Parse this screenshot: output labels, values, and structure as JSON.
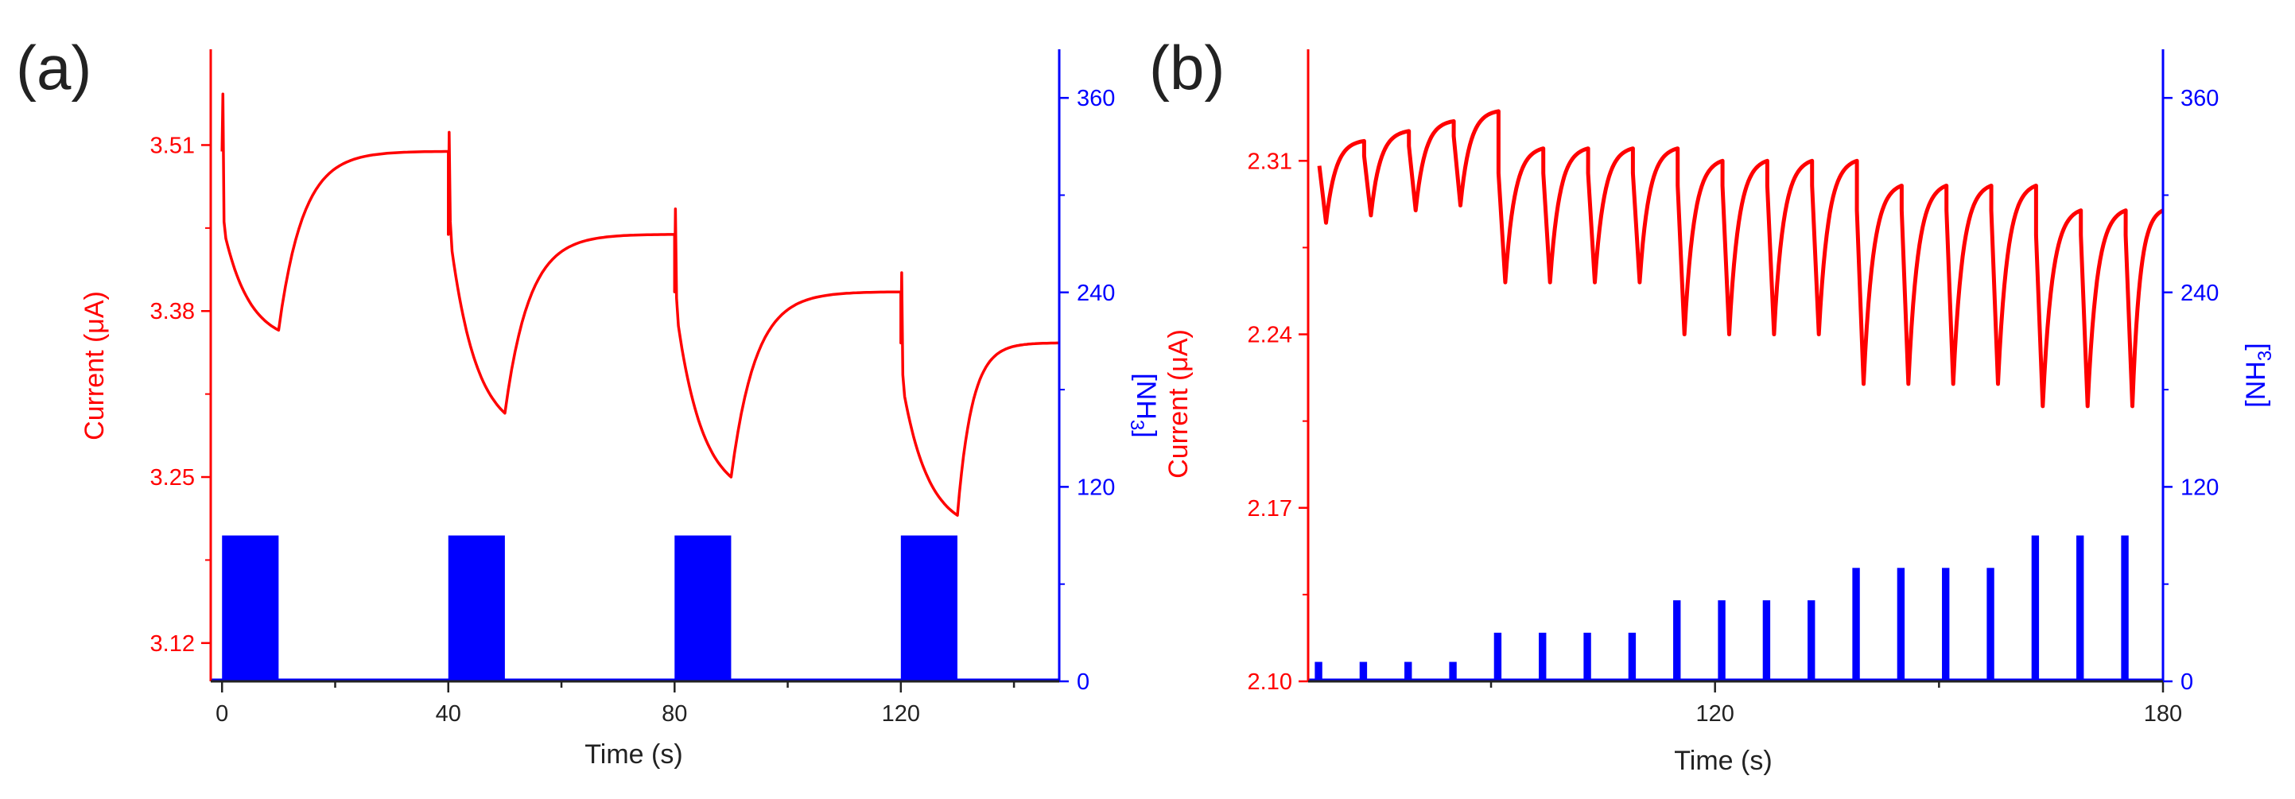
{
  "colors": {
    "current": "#ff0000",
    "nh3": "#0000ff",
    "axis": "#222222"
  },
  "chart_data": [
    {
      "panel_label": "(a)",
      "type": "line",
      "xlabel": "Time (s)",
      "ylabel_left": "Current (μA)",
      "ylabel_right": "[NH",
      "ylabel_right_sub": "3",
      "ylabel_right_close": "]",
      "xlim": [
        -2,
        148
      ],
      "ylim_left": [
        3.09,
        3.585
      ],
      "ylim_right": [
        0,
        390
      ],
      "x_ticks": [
        0,
        40,
        80,
        120
      ],
      "x_tick_labels": [
        "0",
        "40",
        "80",
        "120"
      ],
      "y_left_ticks": [
        3.12,
        3.25,
        3.38,
        3.51
      ],
      "y_left_tick_labels": [
        "3.12",
        "3.25",
        "3.38",
        "3.51"
      ],
      "y_right_ticks": [
        0,
        120,
        240,
        360
      ],
      "y_right_tick_labels": [
        "0",
        "120",
        "240",
        "360"
      ],
      "series": [
        {
          "name": "Current",
          "axis": "left",
          "color": "#ff0000",
          "cycles": [
            {
              "t_on": 0,
              "t_off": 10,
              "peak": 3.55,
              "start": 3.45,
              "fall_end": 3.365,
              "rise_end": 3.505
            },
            {
              "t_on": 40,
              "t_off": 50,
              "peak": 3.52,
              "start": 3.45,
              "fall_end": 3.3,
              "rise_end": 3.44
            },
            {
              "t_on": 80,
              "t_off": 90,
              "peak": 3.46,
              "start": 3.39,
              "fall_end": 3.25,
              "rise_end": 3.395
            },
            {
              "t_on": 120,
              "t_off": 130,
              "peak": 3.41,
              "start": 3.33,
              "fall_end": 3.22,
              "rise_end": 3.355
            }
          ]
        },
        {
          "name": "[NH3]",
          "axis": "right",
          "color": "#0000ff",
          "pulses": [
            {
              "start": 0,
              "end": 10,
              "value": 90
            },
            {
              "start": 40,
              "end": 50,
              "value": 90
            },
            {
              "start": 80,
              "end": 90,
              "value": 90
            },
            {
              "start": 120,
              "end": 130,
              "value": 90
            }
          ]
        }
      ]
    },
    {
      "panel_label": "(b)",
      "type": "line",
      "xlabel": "Time (s)",
      "ylabel_left": "Current (μA)",
      "ylabel_right": "[NH",
      "ylabel_right_sub": "3",
      "ylabel_right_close": "]",
      "xlim": [
        65.5,
        180
      ],
      "ylim_left": [
        2.1,
        2.355
      ],
      "ylim_right": [
        0,
        390
      ],
      "x_ticks": [
        120,
        180
      ],
      "x_tick_labels": [
        "120",
        "180"
      ],
      "y_left_ticks": [
        2.1,
        2.17,
        2.24,
        2.31
      ],
      "y_left_tick_labels": [
        "2.10",
        "2.17",
        "2.24",
        "2.31"
      ],
      "y_right_ticks": [
        0,
        120,
        240,
        360
      ],
      "y_right_tick_labels": [
        "0",
        "120",
        "240",
        "360"
      ],
      "series": [
        {
          "name": "Current",
          "axis": "left",
          "color": "#ff0000",
          "cycles": [
            {
              "t_on": 67,
              "peak": 2.318,
              "dip": 2.285
            },
            {
              "t_on": 73,
              "peak": 2.322,
              "dip": 2.288
            },
            {
              "t_on": 79,
              "peak": 2.326,
              "dip": 2.29
            },
            {
              "t_on": 85,
              "peak": 2.33,
              "dip": 2.292
            },
            {
              "t_on": 91,
              "peak": 2.315,
              "dip": 2.261
            },
            {
              "t_on": 97,
              "peak": 2.315,
              "dip": 2.261
            },
            {
              "t_on": 103,
              "peak": 2.315,
              "dip": 2.261
            },
            {
              "t_on": 109,
              "peak": 2.315,
              "dip": 2.261
            },
            {
              "t_on": 115,
              "peak": 2.31,
              "dip": 2.24
            },
            {
              "t_on": 121,
              "peak": 2.31,
              "dip": 2.24
            },
            {
              "t_on": 127,
              "peak": 2.31,
              "dip": 2.24
            },
            {
              "t_on": 133,
              "peak": 2.31,
              "dip": 2.24
            },
            {
              "t_on": 139,
              "peak": 2.3,
              "dip": 2.22
            },
            {
              "t_on": 145,
              "peak": 2.3,
              "dip": 2.22
            },
            {
              "t_on": 151,
              "peak": 2.3,
              "dip": 2.22
            },
            {
              "t_on": 157,
              "peak": 2.3,
              "dip": 2.22
            },
            {
              "t_on": 163,
              "peak": 2.29,
              "dip": 2.211
            },
            {
              "t_on": 169,
              "peak": 2.29,
              "dip": 2.211
            },
            {
              "t_on": 175,
              "peak": 2.29,
              "dip": 2.211
            }
          ]
        },
        {
          "name": "[NH3]",
          "axis": "right",
          "color": "#0000ff",
          "pulse_width": 1.0,
          "pulses": [
            {
              "t": 66.5,
              "value": 12
            },
            {
              "t": 72.5,
              "value": 12
            },
            {
              "t": 78.5,
              "value": 12
            },
            {
              "t": 84.5,
              "value": 12
            },
            {
              "t": 90.5,
              "value": 30
            },
            {
              "t": 96.5,
              "value": 30
            },
            {
              "t": 102.5,
              "value": 30
            },
            {
              "t": 108.5,
              "value": 30
            },
            {
              "t": 114.5,
              "value": 50
            },
            {
              "t": 120.5,
              "value": 50
            },
            {
              "t": 126.5,
              "value": 50
            },
            {
              "t": 132.5,
              "value": 50
            },
            {
              "t": 138.5,
              "value": 70
            },
            {
              "t": 144.5,
              "value": 70
            },
            {
              "t": 150.5,
              "value": 70
            },
            {
              "t": 156.5,
              "value": 70
            },
            {
              "t": 162.5,
              "value": 90
            },
            {
              "t": 168.5,
              "value": 90
            },
            {
              "t": 174.5,
              "value": 90
            }
          ]
        }
      ]
    }
  ]
}
